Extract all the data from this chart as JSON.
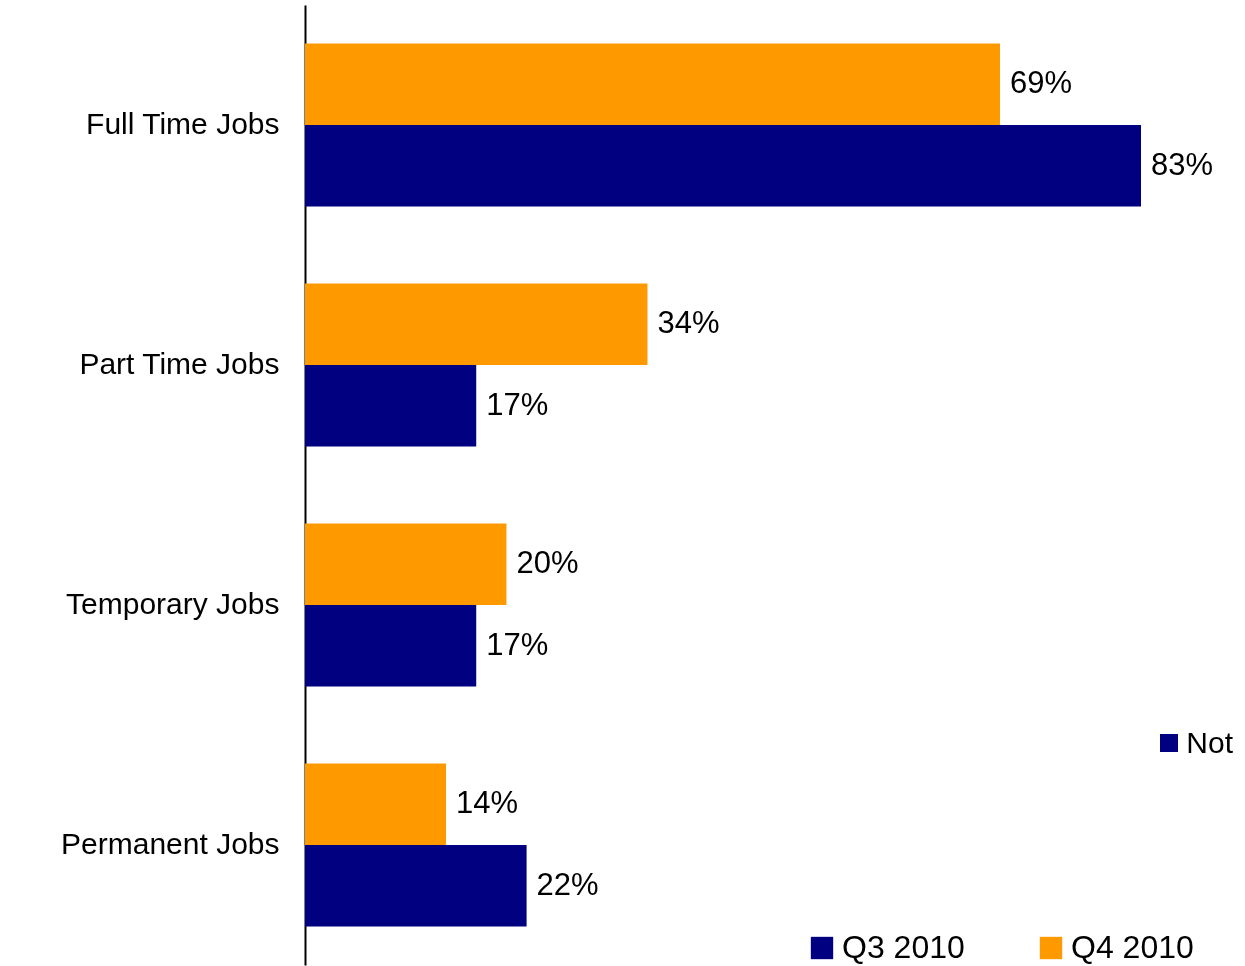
{
  "chart_data": {
    "type": "bar",
    "orientation": "horizontal",
    "categories": [
      "Full Time Jobs",
      "Part Time Jobs",
      "Temporary Jobs",
      "Permanent Jobs"
    ],
    "series": [
      {
        "name": "Q3 2010",
        "color": "#000080",
        "values": [
          83,
          17,
          17,
          22
        ],
        "value_labels": [
          "83%",
          "17%",
          "17%",
          "22%"
        ]
      },
      {
        "name": "Q4 2010",
        "color": "#ff9900",
        "values": [
          69,
          34,
          20,
          14
        ],
        "value_labels": [
          "69%",
          "34%",
          "20%",
          "14%"
        ]
      }
    ],
    "annotations": [
      "Not"
    ],
    "legend": "bottom right"
  }
}
